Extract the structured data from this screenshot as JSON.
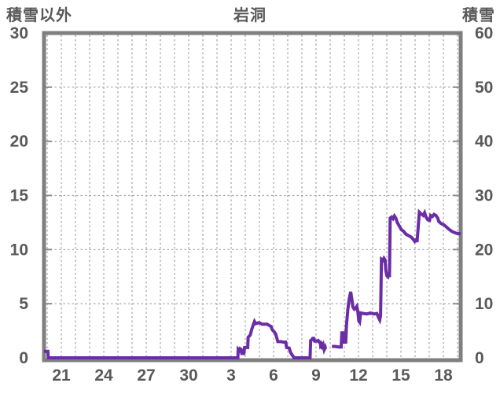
{
  "header": {
    "left_axis_title": "積雪以外",
    "title": "岩洞",
    "right_axis_title": "積雪"
  },
  "chart_data": {
    "type": "line",
    "title": "岩洞",
    "station": "岩洞",
    "left_axis": {
      "label": "積雪以外",
      "min": 0,
      "max": 30,
      "ticks": [
        30,
        25,
        20,
        15,
        10,
        5,
        0
      ]
    },
    "right_axis": {
      "label": "積雪",
      "min": 0,
      "max": 60,
      "ticks": [
        60,
        50,
        40,
        30,
        20,
        10,
        0
      ]
    },
    "x_axis": {
      "note": "day of month across a month boundary",
      "tick_labels": [
        "21",
        "24",
        "27",
        "30",
        "3",
        "6",
        "9",
        "12",
        "15",
        "18"
      ],
      "tick_days_linear": [
        21,
        24,
        27,
        30,
        33,
        36,
        39,
        42,
        45,
        48
      ],
      "domain_linear": [
        19.78,
        49.22
      ],
      "grid_every_days": 1
    },
    "grid": {
      "horizontal_right_units": [
        10,
        20,
        30,
        40,
        50
      ],
      "style": "dashed"
    },
    "colors": {
      "line": "#6a2da6",
      "frame": "#7f7f7f",
      "grid": "#a3a3a3",
      "tick": "#8c8c8c",
      "text": "#595959",
      "background": "#ffffff"
    },
    "series": [
      {
        "name": "積雪",
        "axis": "right",
        "units": "cm",
        "segments": [
          [
            [
              19.78,
              1.2
            ],
            [
              20.05,
              1.2
            ],
            [
              20.08,
              0
            ],
            [
              33.48,
              0
            ],
            [
              33.5,
              1.6
            ],
            [
              33.58,
              1.4
            ],
            [
              33.63,
              1.7
            ],
            [
              33.7,
              1.6
            ],
            [
              33.75,
              0.8
            ],
            [
              33.9,
              0.8
            ],
            [
              33.95,
              1.9
            ],
            [
              34.17,
              1.9
            ],
            [
              34.2,
              3.8
            ],
            [
              34.35,
              4.2
            ],
            [
              34.45,
              5.2
            ],
            [
              34.58,
              6.2
            ],
            [
              34.65,
              6.7
            ],
            [
              34.73,
              6.3
            ],
            [
              34.97,
              6.5
            ],
            [
              35.2,
              6.2
            ],
            [
              35.55,
              6.2
            ],
            [
              35.68,
              6.0
            ],
            [
              35.82,
              5.8
            ],
            [
              35.9,
              5.2
            ],
            [
              36.05,
              4.8
            ],
            [
              36.15,
              4.4
            ],
            [
              36.3,
              3.0
            ],
            [
              36.5,
              3.0
            ],
            [
              36.68,
              2.9
            ],
            [
              36.85,
              2.9
            ],
            [
              36.92,
              1.9
            ],
            [
              37.1,
              1.8
            ],
            [
              37.2,
              1.0
            ],
            [
              37.32,
              0.5
            ],
            [
              37.45,
              0
            ],
            [
              38.58,
              0
            ],
            [
              38.62,
              3.2
            ],
            [
              38.7,
              3.3
            ],
            [
              38.76,
              3.6
            ],
            [
              38.84,
              3.6
            ],
            [
              38.9,
              3.1
            ],
            [
              39.05,
              3.1
            ],
            [
              39.15,
              3.2
            ],
            [
              39.22,
              2.9
            ],
            [
              39.3,
              2.9
            ],
            [
              39.33,
              2.2
            ],
            [
              39.4,
              2.4
            ],
            [
              39.45,
              1.6
            ],
            [
              39.52,
              2.2
            ],
            [
              39.58,
              1.5
            ],
            [
              39.65,
              1.9
            ],
            [
              39.68,
              1.6
            ]
          ],
          [
            [
              40.12,
              2.1
            ],
            [
              40.35,
              2.1
            ],
            [
              40.6,
              2.0
            ],
            [
              40.78,
              2.0
            ],
            [
              40.82,
              4.6
            ],
            [
              40.95,
              4.6
            ],
            [
              41.0,
              2.9
            ],
            [
              41.1,
              2.9
            ],
            [
              41.15,
              6.0
            ],
            [
              41.25,
              9.0
            ],
            [
              41.35,
              11.0
            ],
            [
              41.45,
              12.2
            ],
            [
              41.52,
              11.0
            ],
            [
              41.6,
              9.4
            ],
            [
              41.7,
              9.0
            ],
            [
              41.8,
              9.2
            ],
            [
              41.88,
              9.5
            ],
            [
              41.95,
              8.6
            ],
            [
              42.02,
              6.8
            ],
            [
              42.08,
              6.6
            ],
            [
              42.15,
              8.3
            ],
            [
              42.35,
              8.2
            ],
            [
              42.6,
              8.1
            ],
            [
              42.85,
              8.3
            ],
            [
              43.1,
              8.1
            ],
            [
              43.3,
              8.2
            ],
            [
              43.42,
              7.4
            ],
            [
              43.5,
              7.0
            ],
            [
              43.56,
              7.8
            ],
            [
              43.62,
              18.2
            ],
            [
              43.72,
              18.0
            ],
            [
              43.8,
              18.4
            ],
            [
              43.88,
              18.1
            ],
            [
              43.93,
              16.2
            ],
            [
              44.0,
              15.2
            ],
            [
              44.08,
              15.0
            ],
            [
              44.14,
              15.7
            ],
            [
              44.19,
              14.9
            ],
            [
              44.24,
              25.8
            ],
            [
              44.34,
              26.0
            ],
            [
              44.44,
              25.7
            ],
            [
              44.54,
              26.2
            ],
            [
              44.64,
              25.8
            ],
            [
              44.74,
              25.0
            ],
            [
              44.87,
              24.4
            ],
            [
              45.02,
              23.7
            ],
            [
              45.17,
              23.4
            ],
            [
              45.37,
              22.8
            ],
            [
              45.52,
              22.6
            ],
            [
              45.72,
              22.3
            ],
            [
              45.87,
              21.9
            ],
            [
              45.97,
              21.5
            ],
            [
              46.07,
              21.8
            ],
            [
              46.14,
              21.4
            ],
            [
              46.22,
              24.2
            ],
            [
              46.3,
              26.9
            ],
            [
              46.42,
              26.6
            ],
            [
              46.57,
              26.3
            ],
            [
              46.67,
              26.8
            ],
            [
              46.77,
              26.0
            ],
            [
              46.9,
              25.5
            ],
            [
              47.02,
              25.4
            ],
            [
              47.1,
              26.3
            ],
            [
              47.22,
              26.1
            ],
            [
              47.34,
              26.5
            ],
            [
              47.47,
              26.3
            ],
            [
              47.6,
              25.8
            ],
            [
              47.67,
              25.2
            ],
            [
              47.84,
              24.8
            ],
            [
              48.02,
              24.6
            ],
            [
              48.2,
              24.2
            ],
            [
              48.37,
              23.8
            ],
            [
              48.57,
              23.4
            ],
            [
              48.72,
              23.2
            ],
            [
              48.92,
              23.0
            ],
            [
              49.22,
              22.9
            ]
          ]
        ]
      }
    ]
  }
}
